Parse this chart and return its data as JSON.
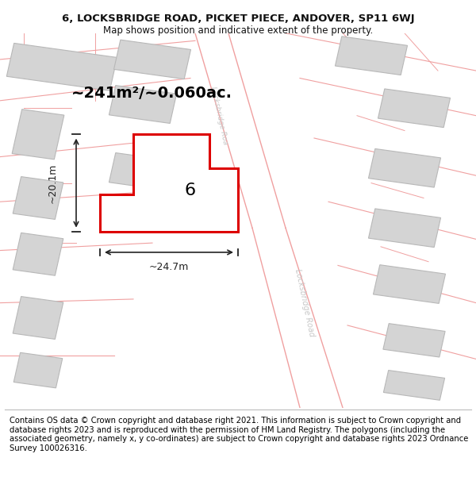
{
  "title_line1": "6, LOCKSBRIDGE ROAD, PICKET PIECE, ANDOVER, SP11 6WJ",
  "title_line2": "Map shows position and indicative extent of the property.",
  "footer_text": "Contains OS data © Crown copyright and database right 2021. This information is subject to Crown copyright and database rights 2023 and is reproduced with the permission of HM Land Registry. The polygons (including the associated geometry, namely x, y co-ordinates) are subject to Crown copyright and database rights 2023 Ordnance Survey 100026316.",
  "area_text": "~241m²/~0.060ac.",
  "width_label": "~24.7m",
  "height_label": "~20.1m",
  "property_number": "6",
  "bg_color": "#ffffff",
  "map_bg": "#f7f7f7",
  "road_line_color": "#f0a0a0",
  "building_fill": "#d4d4d4",
  "building_edge": "#b8b8b8",
  "plot_edge": "#dd0000",
  "plot_fill": "#ffffff",
  "road_label_color": "#c8c8c8",
  "dim_color": "#222222",
  "area_text_size": 14,
  "prop_num_size": 16,
  "title_size": 9.5,
  "sub_size": 8.5,
  "footer_size": 7.2,
  "dim_text_size": 9
}
